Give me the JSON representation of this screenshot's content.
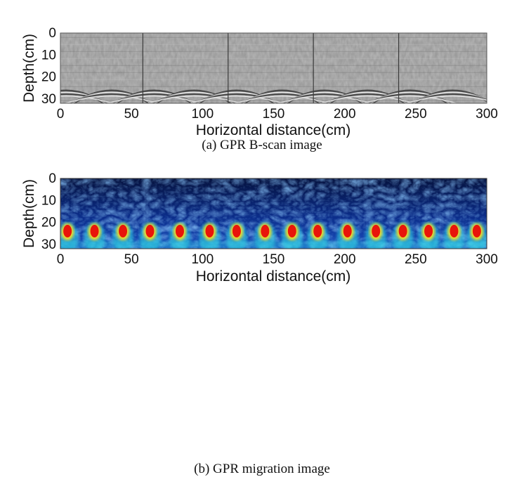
{
  "chart_data": [
    {
      "type": "heatmap",
      "caption": "(a) GPR B-scan image",
      "xlabel": "Horizontal distance(cm)",
      "ylabel": "Depth(cm)",
      "xlim": [
        0,
        300
      ],
      "ylim": [
        0,
        32
      ],
      "x_ticks": [
        0,
        50,
        100,
        150,
        200,
        250,
        300
      ],
      "y_ticks": [
        0,
        10,
        20,
        30
      ],
      "colormap": "grayscale",
      "segment_boundaries_x": [
        58,
        118,
        178,
        238
      ],
      "hyperbola_apex_x": [
        4,
        36,
        66,
        94,
        124,
        156,
        186,
        216,
        246,
        276
      ],
      "hyperbola_apex_depth": 24,
      "colors": {
        "background": "#9a9a9a",
        "dark": "#3a3a3a",
        "light": "#e8e8e8"
      }
    },
    {
      "type": "heatmap",
      "caption": "(b) GPR migration image",
      "xlabel": "Horizontal distance(cm)",
      "ylabel": "Depth(cm)",
      "xlim": [
        0,
        300
      ],
      "ylim": [
        0,
        32
      ],
      "x_ticks": [
        0,
        50,
        100,
        150,
        200,
        250,
        300
      ],
      "y_ticks": [
        0,
        10,
        20,
        30
      ],
      "colormap": "jet",
      "target_x": [
        5,
        24,
        44,
        63,
        84,
        105,
        124,
        144,
        163,
        181,
        202,
        222,
        241,
        259,
        277,
        293
      ],
      "target_depth": 24,
      "colors": {
        "background": "#0a2a7a",
        "target": "#e8150a",
        "ring": "#f5e020",
        "halo": "#2fd0e0"
      }
    }
  ]
}
